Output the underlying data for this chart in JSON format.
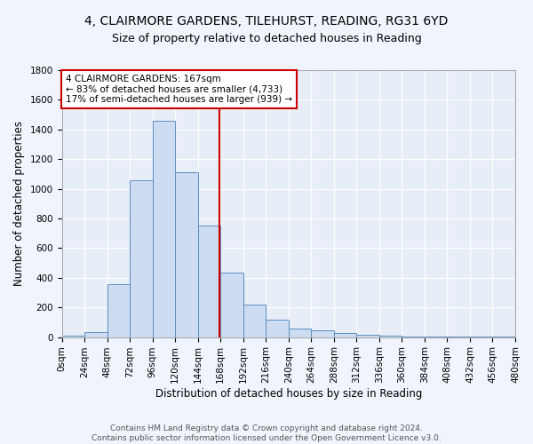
{
  "title_line1": "4, CLAIRMORE GARDENS, TILEHURST, READING, RG31 6YD",
  "title_line2": "Size of property relative to detached houses in Reading",
  "xlabel": "Distribution of detached houses by size in Reading",
  "ylabel": "Number of detached properties",
  "bar_color": "#cddcf0",
  "bar_edge_color": "#5a8fc4",
  "background_color": "#e8eef8",
  "grid_color": "#ffffff",
  "fig_bg_color": "#f0f4fc",
  "bin_edges": [
    0,
    24,
    48,
    72,
    96,
    120,
    144,
    168,
    192,
    216,
    240,
    264,
    288,
    312,
    336,
    360,
    384,
    408,
    432,
    456,
    480
  ],
  "counts": [
    10,
    35,
    355,
    1060,
    1460,
    1110,
    750,
    435,
    220,
    115,
    55,
    45,
    30,
    15,
    10,
    5,
    5,
    3,
    2,
    2
  ],
  "vline_x": 167,
  "vline_color": "#cc0000",
  "annotation_text": "4 CLAIRMORE GARDENS: 167sqm\n← 83% of detached houses are smaller (4,733)\n17% of semi-detached houses are larger (939) →",
  "annotation_box_color": "#ffffff",
  "annotation_box_edge_color": "#cc0000",
  "ylim": [
    0,
    1800
  ],
  "yticks": [
    0,
    200,
    400,
    600,
    800,
    1000,
    1200,
    1400,
    1600,
    1800
  ],
  "tick_labels": [
    "0sqm",
    "24sqm",
    "48sqm",
    "72sqm",
    "96sqm",
    "120sqm",
    "144sqm",
    "168sqm",
    "192sqm",
    "216sqm",
    "240sqm",
    "264sqm",
    "288sqm",
    "312sqm",
    "336sqm",
    "360sqm",
    "384sqm",
    "408sqm",
    "432sqm",
    "456sqm",
    "480sqm"
  ],
  "footer_text": "Contains HM Land Registry data © Crown copyright and database right 2024.\nContains public sector information licensed under the Open Government Licence v3.0.",
  "title_fontsize": 10,
  "subtitle_fontsize": 9,
  "axis_label_fontsize": 8.5,
  "tick_fontsize": 7.5,
  "annotation_fontsize": 7.5,
  "footer_fontsize": 6.5
}
